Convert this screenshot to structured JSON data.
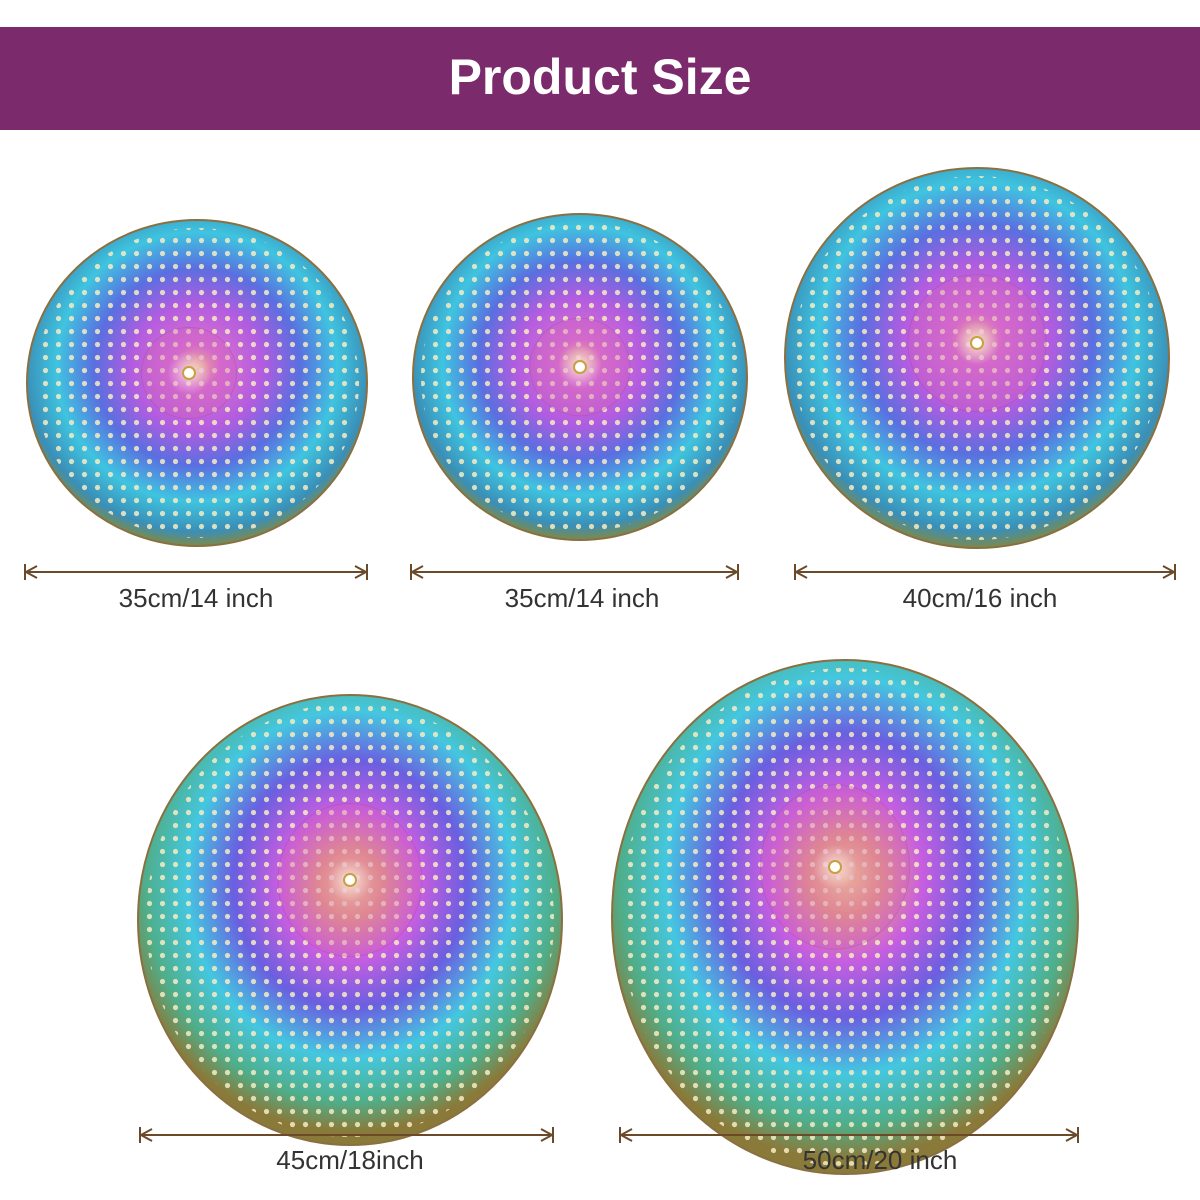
{
  "header": {
    "title": "Product Size"
  },
  "sizes": [
    "35cm/14 inch",
    "35cm/14 inch",
    "40cm/16 inch",
    "45cm/18inch",
    "50cm/20 inch"
  ]
}
